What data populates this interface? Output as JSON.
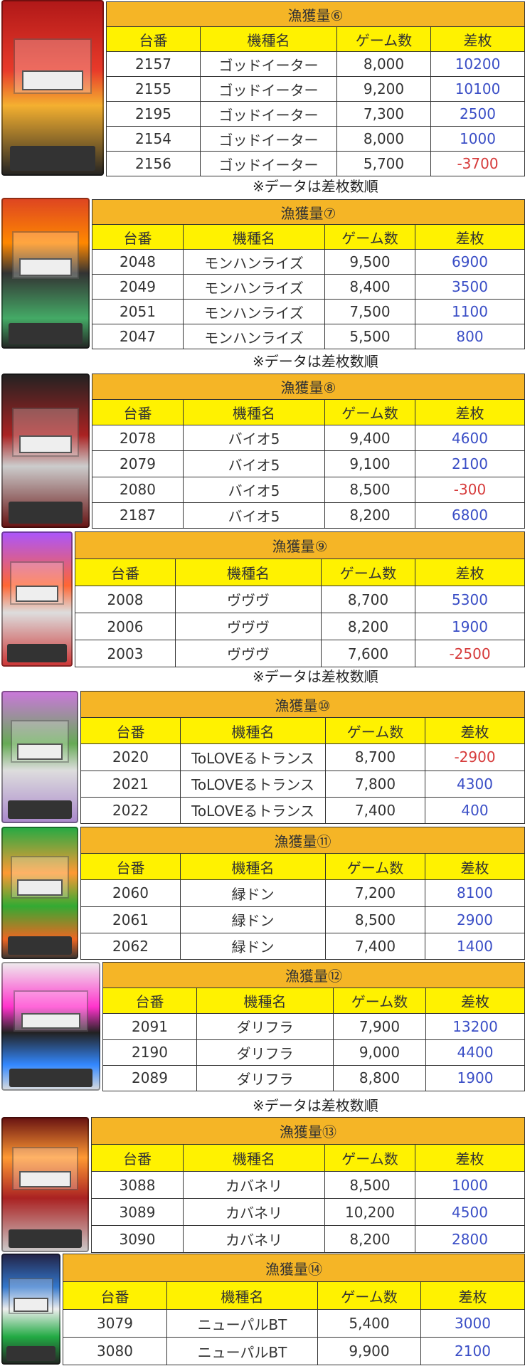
{
  "columns": [
    "台番",
    "機種名",
    "ゲーム数",
    "差枚"
  ],
  "note": "※データは差枚数順",
  "colors": {
    "title_bg": "#f5b526",
    "header_bg": "#fff200",
    "positive": "#3a4ec6",
    "negative": "#d63b3b"
  },
  "tables": [
    {
      "title": "漁獲量⑥",
      "machine_image": "ゴッドイーター",
      "rows": [
        [
          "2157",
          "ゴッドイーター",
          "8,000",
          "10200"
        ],
        [
          "2155",
          "ゴッドイーター",
          "9,200",
          "10100"
        ],
        [
          "2195",
          "ゴッドイーター",
          "7,300",
          "2500"
        ],
        [
          "2154",
          "ゴッドイーター",
          "8,000",
          "1000"
        ],
        [
          "2156",
          "ゴッドイーター",
          "5,700",
          "-3700"
        ]
      ]
    },
    {
      "title": "漁獲量⑦",
      "machine_image": "モンハンライズ",
      "rows": [
        [
          "2048",
          "モンハンライズ",
          "9,500",
          "6900"
        ],
        [
          "2049",
          "モンハンライズ",
          "8,400",
          "3500"
        ],
        [
          "2051",
          "モンハンライズ",
          "7,500",
          "1100"
        ],
        [
          "2047",
          "モンハンライズ",
          "5,500",
          "800"
        ]
      ]
    },
    {
      "title": "漁獲量⑧",
      "machine_image": "バイオ5",
      "rows": [
        [
          "2078",
          "バイオ5",
          "9,400",
          "4600"
        ],
        [
          "2079",
          "バイオ5",
          "9,100",
          "2100"
        ],
        [
          "2080",
          "バイオ5",
          "8,500",
          "-300"
        ],
        [
          "2187",
          "バイオ5",
          "8,200",
          "6800"
        ]
      ]
    },
    {
      "title": "漁獲量⑨",
      "machine_image": "ヴヴヴ",
      "rows": [
        [
          "2008",
          "ヴヴヴ",
          "8,700",
          "5300"
        ],
        [
          "2006",
          "ヴヴヴ",
          "8,200",
          "1900"
        ],
        [
          "2003",
          "ヴヴヴ",
          "7,600",
          "-2500"
        ]
      ]
    },
    {
      "title": "漁獲量⑩",
      "machine_image": "ToLOVEるトランス",
      "rows": [
        [
          "2020",
          "ToLOVEるトランス",
          "8,700",
          "-2900"
        ],
        [
          "2021",
          "ToLOVEるトランス",
          "7,800",
          "4300"
        ],
        [
          "2022",
          "ToLOVEるトランス",
          "7,400",
          "400"
        ]
      ]
    },
    {
      "title": "漁獲量⑪",
      "machine_image": "緑ドン",
      "rows": [
        [
          "2060",
          "緑ドン",
          "7,200",
          "8100"
        ],
        [
          "2061",
          "緑ドン",
          "8,500",
          "2900"
        ],
        [
          "2062",
          "緑ドン",
          "7,400",
          "1400"
        ]
      ]
    },
    {
      "title": "漁獲量⑫",
      "machine_image": "ダリフラ",
      "rows": [
        [
          "2091",
          "ダリフラ",
          "7,900",
          "13200"
        ],
        [
          "2190",
          "ダリフラ",
          "9,000",
          "4400"
        ],
        [
          "2089",
          "ダリフラ",
          "8,800",
          "1900"
        ]
      ]
    },
    {
      "title": "漁獲量⑬",
      "machine_image": "カバネリ",
      "rows": [
        [
          "3088",
          "カバネリ",
          "8,500",
          "1000"
        ],
        [
          "3089",
          "カバネリ",
          "10,200",
          "4500"
        ],
        [
          "3090",
          "カバネリ",
          "8,200",
          "2800"
        ]
      ]
    },
    {
      "title": "漁獲量⑭",
      "machine_image": "ニューパルBT",
      "rows": [
        [
          "3079",
          "ニューパルBT",
          "5,400",
          "3000"
        ],
        [
          "3080",
          "ニューパルBT",
          "9,900",
          "2100"
        ]
      ]
    }
  ]
}
